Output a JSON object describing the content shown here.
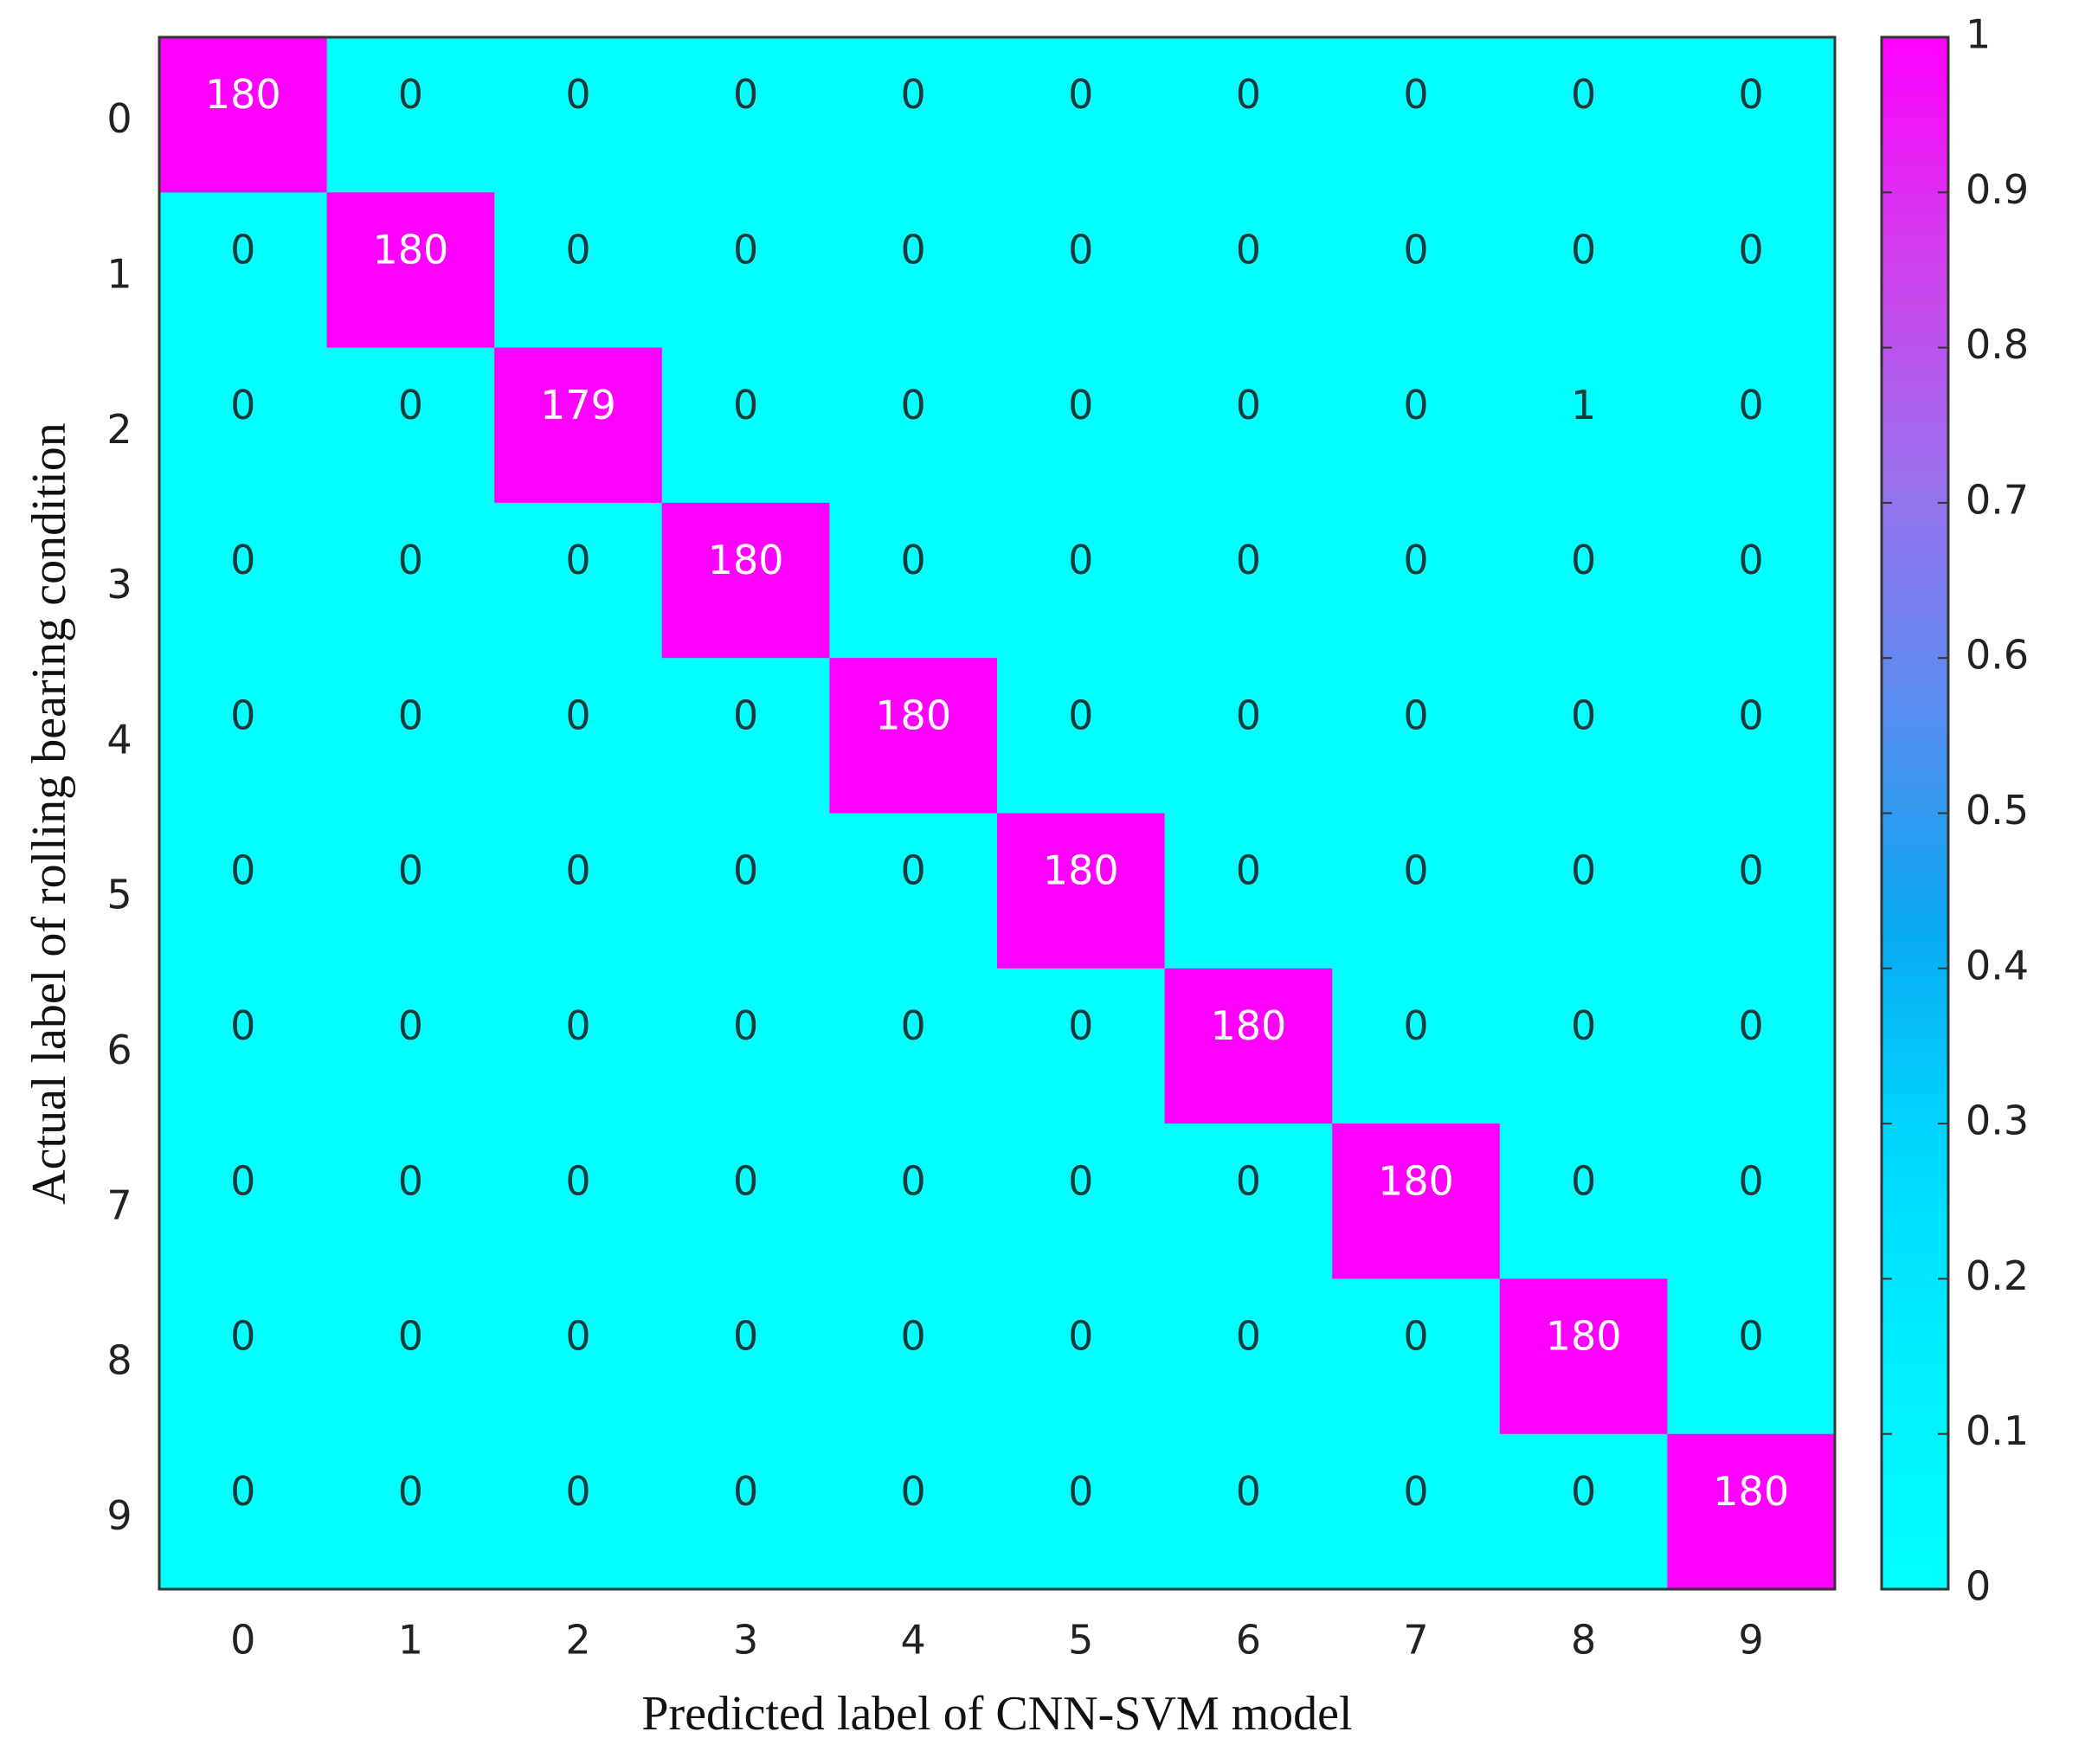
{
  "chart_data": {
    "type": "heatmap",
    "xlabel": "Predicted label of CNN-SVM model",
    "ylabel": "Actual label of rolling bearing condition",
    "x_categories": [
      "0",
      "1",
      "2",
      "3",
      "4",
      "5",
      "6",
      "7",
      "8",
      "9"
    ],
    "y_categories": [
      "0",
      "1",
      "2",
      "3",
      "4",
      "5",
      "6",
      "7",
      "8",
      "9"
    ],
    "z": [
      [
        180,
        0,
        0,
        0,
        0,
        0,
        0,
        0,
        0,
        0
      ],
      [
        0,
        180,
        0,
        0,
        0,
        0,
        0,
        0,
        0,
        0
      ],
      [
        0,
        0,
        179,
        0,
        0,
        0,
        0,
        0,
        1,
        0
      ],
      [
        0,
        0,
        0,
        180,
        0,
        0,
        0,
        0,
        0,
        0
      ],
      [
        0,
        0,
        0,
        0,
        180,
        0,
        0,
        0,
        0,
        0
      ],
      [
        0,
        0,
        0,
        0,
        0,
        180,
        0,
        0,
        0,
        0
      ],
      [
        0,
        0,
        0,
        0,
        0,
        0,
        180,
        0,
        0,
        0
      ],
      [
        0,
        0,
        0,
        0,
        0,
        0,
        0,
        180,
        0,
        0
      ],
      [
        0,
        0,
        0,
        0,
        0,
        0,
        0,
        0,
        180,
        0
      ],
      [
        0,
        0,
        0,
        0,
        0,
        0,
        0,
        0,
        0,
        180
      ]
    ],
    "normalize": "row",
    "colormap": [
      "#00ffff",
      "#00f0ff",
      "#00d8ff",
      "#0aa8f0",
      "#5a8cf0",
      "#9a70ec",
      "#d040ec",
      "#ff00ff"
    ],
    "clim": [
      0,
      1
    ],
    "cticks": [
      0,
      0.1,
      0.2,
      0.3,
      0.4,
      0.5,
      0.6,
      0.7,
      0.8,
      0.9,
      1
    ]
  }
}
